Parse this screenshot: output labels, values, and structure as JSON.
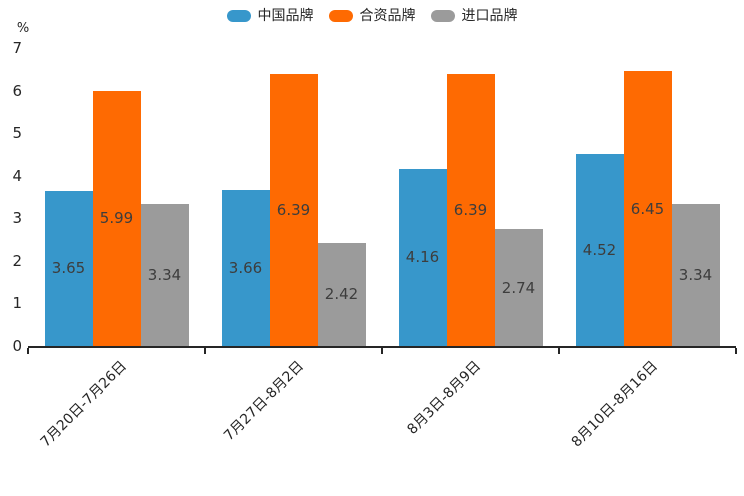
{
  "chart_data": {
    "type": "bar",
    "title": "",
    "categories": [
      "7月20日-7月26日",
      "7月27日-8月2日",
      "8月3日-8月9日",
      "8月10日-8月16日"
    ],
    "series": [
      {
        "name": "中国品牌",
        "color": "#3797cb",
        "values": [
          3.65,
          3.66,
          4.16,
          4.52
        ]
      },
      {
        "name": "合资品牌",
        "color": "#fe6a02",
        "values": [
          5.99,
          6.39,
          6.39,
          6.45
        ]
      },
      {
        "name": "进口品牌",
        "color": "#9b9b9b",
        "values": [
          3.34,
          2.42,
          2.74,
          3.34
        ]
      }
    ],
    "xlabel": "",
    "ylabel": "%",
    "ylim": [
      0,
      7
    ],
    "yticks": [
      0,
      1,
      2,
      3,
      4,
      5,
      6,
      7
    ],
    "grid": false,
    "legend_position": "top-center",
    "value_labels": "inside-center"
  },
  "style": {
    "axis_color": "#262626",
    "tick_label_color": "#262626",
    "value_label_color": "#3d3d3d",
    "background": "#ffffff"
  }
}
